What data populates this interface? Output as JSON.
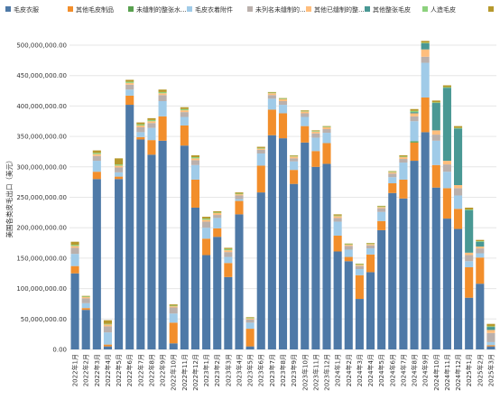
{
  "chart_data": {
    "type": "bar",
    "stacked": true,
    "ylabel": "美国各类皮毛出口（美元）",
    "ylim": [
      0,
      500000000
    ],
    "yticks": [
      0,
      50000000,
      100000000,
      150000000,
      200000000,
      250000000,
      300000000,
      350000000,
      400000000,
      450000000,
      500000000
    ],
    "ytick_labels": [
      "0.00",
      "50,000,000.00",
      "100,000,000.00",
      "150,000,000.00",
      "200,000,000.00",
      "250,000,000.00",
      "300,000,000.00",
      "350,000,000.00",
      "400,000,000.00",
      "450,000,000.00",
      "500,000,000.00"
    ],
    "grid": true,
    "legend_position": "top",
    "categories": [
      "2022年1月",
      "2022年2月",
      "2022年3月",
      "2022年4月",
      "2022年5月",
      "2022年6月",
      "2022年7月",
      "2022年8月",
      "2022年9月",
      "2022年10月",
      "2022年11月",
      "2022年12月",
      "2023年1月",
      "2023年2月",
      "2023年3月",
      "2023年4月",
      "2023年5月",
      "2023年6月",
      "2023年7月",
      "2023年8月",
      "2023年9月",
      "2023年10月",
      "2023年11月",
      "2023年12月",
      "2024年1月",
      "2024年2月",
      "2024年3月",
      "2024年4月",
      "2024年5月",
      "2024年6月",
      "2024年7月",
      "2024年8月",
      "2024年9月",
      "2024年10月",
      "2024年11月",
      "2024年12月",
      "2025年1月",
      "2025年2月",
      "2025年3月"
    ],
    "series": [
      {
        "name": "毛皮衣服",
        "color": "#4e79a7",
        "values": [
          125000000,
          65000000,
          280000000,
          5000000,
          280000000,
          402000000,
          345000000,
          320000000,
          343000000,
          10000000,
          335000000,
          233000000,
          155000000,
          185000000,
          119000000,
          222000000,
          5000000,
          258000000,
          352000000,
          347000000,
          272000000,
          340000000,
          300000000,
          305000000,
          161000000,
          145000000,
          83000000,
          127000000,
          196000000,
          257000000,
          248000000,
          310000000,
          357000000,
          266000000,
          215000000,
          198000000,
          85000000,
          108000000,
          5000000
        ]
      },
      {
        "name": "其他毛皮制品",
        "color": "#f28e2b",
        "values": [
          12000000,
          3000000,
          12000000,
          3000000,
          4000000,
          15000000,
          4000000,
          24000000,
          40000000,
          34000000,
          33000000,
          46000000,
          27000000,
          14000000,
          23000000,
          22000000,
          29000000,
          44000000,
          42000000,
          41000000,
          23000000,
          27000000,
          26000000,
          34000000,
          26000000,
          7000000,
          39000000,
          29000000,
          15000000,
          16000000,
          31000000,
          30000000,
          57000000,
          37000000,
          50000000,
          33000000,
          50000000,
          43000000,
          2000000
        ]
      },
      {
        "name": "未缝制的整张水...",
        "color": "#59a14f",
        "values": [
          0,
          0,
          0,
          0,
          0,
          0,
          0,
          0,
          0,
          0,
          0,
          0,
          0,
          0,
          0,
          0,
          0,
          0,
          0,
          0,
          0,
          0,
          0,
          0,
          0,
          0,
          0,
          0,
          0,
          0,
          0,
          2000000,
          0,
          0,
          0,
          0,
          0,
          0,
          0
        ]
      },
      {
        "name": "毛皮衣着附件",
        "color": "#a0cbe8",
        "values": [
          20000000,
          8000000,
          18000000,
          20000000,
          7000000,
          10000000,
          8000000,
          20000000,
          25000000,
          15000000,
          14000000,
          24000000,
          18000000,
          17000000,
          10000000,
          3000000,
          10000000,
          20000000,
          18000000,
          14000000,
          14000000,
          15000000,
          22000000,
          17000000,
          23000000,
          12000000,
          10000000,
          10000000,
          15000000,
          10000000,
          28000000,
          33000000,
          57000000,
          40000000,
          27000000,
          22000000,
          10000000,
          7000000,
          5000000
        ]
      },
      {
        "name": "未列名未缝制的...",
        "color": "#bab0ac",
        "values": [
          10000000,
          8000000,
          8000000,
          10000000,
          8000000,
          8000000,
          8000000,
          8000000,
          10000000,
          10000000,
          8000000,
          8000000,
          10000000,
          5000000,
          8000000,
          6000000,
          5000000,
          6000000,
          6000000,
          6000000,
          5000000,
          6000000,
          7000000,
          6000000,
          6000000,
          6000000,
          5000000,
          5000000,
          6000000,
          6000000,
          6000000,
          8000000,
          10000000,
          10000000,
          12000000,
          12000000,
          10000000,
          8000000,
          15000000
        ]
      },
      {
        "name": "其他已缝制的整...",
        "color": "#ffbe7d",
        "values": [
          3000000,
          2000000,
          3000000,
          3000000,
          3000000,
          3000000,
          3000000,
          3000000,
          3000000,
          2000000,
          3000000,
          3000000,
          3000000,
          3000000,
          3000000,
          2000000,
          2000000,
          2000000,
          3000000,
          3000000,
          3000000,
          3000000,
          3000000,
          3000000,
          3000000,
          2000000,
          2000000,
          2000000,
          2000000,
          2000000,
          3000000,
          5000000,
          12000000,
          7000000,
          6000000,
          5000000,
          4000000,
          3000000,
          5000000
        ]
      },
      {
        "name": "其他整张毛皮",
        "color": "#499894",
        "values": [
          0,
          0,
          0,
          0,
          0,
          0,
          0,
          0,
          0,
          0,
          0,
          0,
          0,
          0,
          0,
          0,
          0,
          0,
          0,
          0,
          0,
          0,
          0,
          0,
          0,
          0,
          0,
          0,
          0,
          0,
          0,
          2000000,
          10000000,
          45000000,
          120000000,
          93000000,
          70000000,
          8000000,
          5000000
        ]
      },
      {
        "name": "人造毛皮",
        "color": "#8cd17d",
        "values": [
          2000000,
          1000000,
          2000000,
          1000000,
          2000000,
          2000000,
          2000000,
          2000000,
          2000000,
          1000000,
          2000000,
          2000000,
          2000000,
          1000000,
          2000000,
          1000000,
          1000000,
          1000000,
          1000000,
          1000000,
          1000000,
          1000000,
          1000000,
          1000000,
          1000000,
          1000000,
          1000000,
          1000000,
          1000000,
          1000000,
          1000000,
          2000000,
          1000000,
          1000000,
          1000000,
          1000000,
          1000000,
          1000000,
          1000000
        ]
      },
      {
        "name": "",
        "color": "#b6992d",
        "values": [
          5000000,
          1000000,
          4000000,
          6000000,
          10000000,
          3000000,
          3000000,
          3000000,
          4000000,
          2000000,
          3000000,
          3000000,
          3000000,
          2000000,
          2000000,
          2000000,
          1000000,
          2000000,
          1000000,
          1000000,
          1000000,
          1000000,
          1000000,
          1000000,
          2000000,
          1000000,
          1000000,
          1000000,
          1000000,
          1000000,
          2000000,
          3000000,
          3000000,
          3000000,
          3000000,
          3000000,
          3000000,
          2000000,
          4000000
        ]
      }
    ]
  }
}
